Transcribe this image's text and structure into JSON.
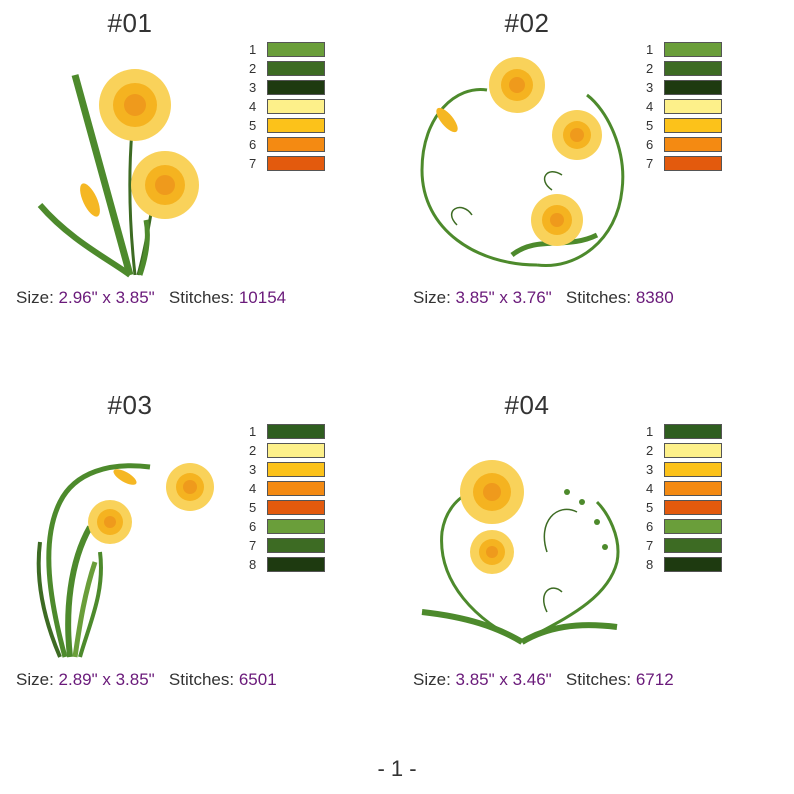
{
  "designs": [
    {
      "title": "#01",
      "size_label": "Size:",
      "size_value": "2.96\" x 3.85\"",
      "stitches_label": "Stitches:",
      "stitches_value": "10154",
      "colors": [
        {
          "num": "1",
          "hex": "#6a9e3a"
        },
        {
          "num": "2",
          "hex": "#3d6b23"
        },
        {
          "num": "3",
          "hex": "#1e3a10"
        },
        {
          "num": "4",
          "hex": "#fdf08a"
        },
        {
          "num": "5",
          "hex": "#fcc21a"
        },
        {
          "num": "6",
          "hex": "#f48a12"
        },
        {
          "num": "7",
          "hex": "#e35a0d"
        }
      ]
    },
    {
      "title": "#02",
      "size_label": "Size:",
      "size_value": "3.85\" x 3.76\"",
      "stitches_label": "Stitches:",
      "stitches_value": "8380",
      "colors": [
        {
          "num": "1",
          "hex": "#6a9e3a"
        },
        {
          "num": "2",
          "hex": "#3d6b23"
        },
        {
          "num": "3",
          "hex": "#1e3a10"
        },
        {
          "num": "4",
          "hex": "#fdf08a"
        },
        {
          "num": "5",
          "hex": "#fcc21a"
        },
        {
          "num": "6",
          "hex": "#f48a12"
        },
        {
          "num": "7",
          "hex": "#e35a0d"
        }
      ]
    },
    {
      "title": "#03",
      "size_label": "Size:",
      "size_value": "2.89\" x 3.85\"",
      "stitches_label": "Stitches:",
      "stitches_value": "6501",
      "colors": [
        {
          "num": "1",
          "hex": "#2f5e1f"
        },
        {
          "num": "2",
          "hex": "#fdf08a"
        },
        {
          "num": "3",
          "hex": "#fcc21a"
        },
        {
          "num": "4",
          "hex": "#f48a12"
        },
        {
          "num": "5",
          "hex": "#e35a0d"
        },
        {
          "num": "6",
          "hex": "#6a9e3a"
        },
        {
          "num": "7",
          "hex": "#3d6b23"
        },
        {
          "num": "8",
          "hex": "#1e3a10"
        }
      ]
    },
    {
      "title": "#04",
      "size_label": "Size:",
      "size_value": "3.85\" x 3.46\"",
      "stitches_label": "Stitches:",
      "stitches_value": "6712",
      "colors": [
        {
          "num": "1",
          "hex": "#2f5e1f"
        },
        {
          "num": "2",
          "hex": "#fdf08a"
        },
        {
          "num": "3",
          "hex": "#fcc21a"
        },
        {
          "num": "4",
          "hex": "#f48a12"
        },
        {
          "num": "5",
          "hex": "#e35a0d"
        },
        {
          "num": "6",
          "hex": "#6a9e3a"
        },
        {
          "num": "7",
          "hex": "#3d6b23"
        },
        {
          "num": "8",
          "hex": "#1e3a10"
        }
      ]
    }
  ],
  "page_number": "- 1 -"
}
